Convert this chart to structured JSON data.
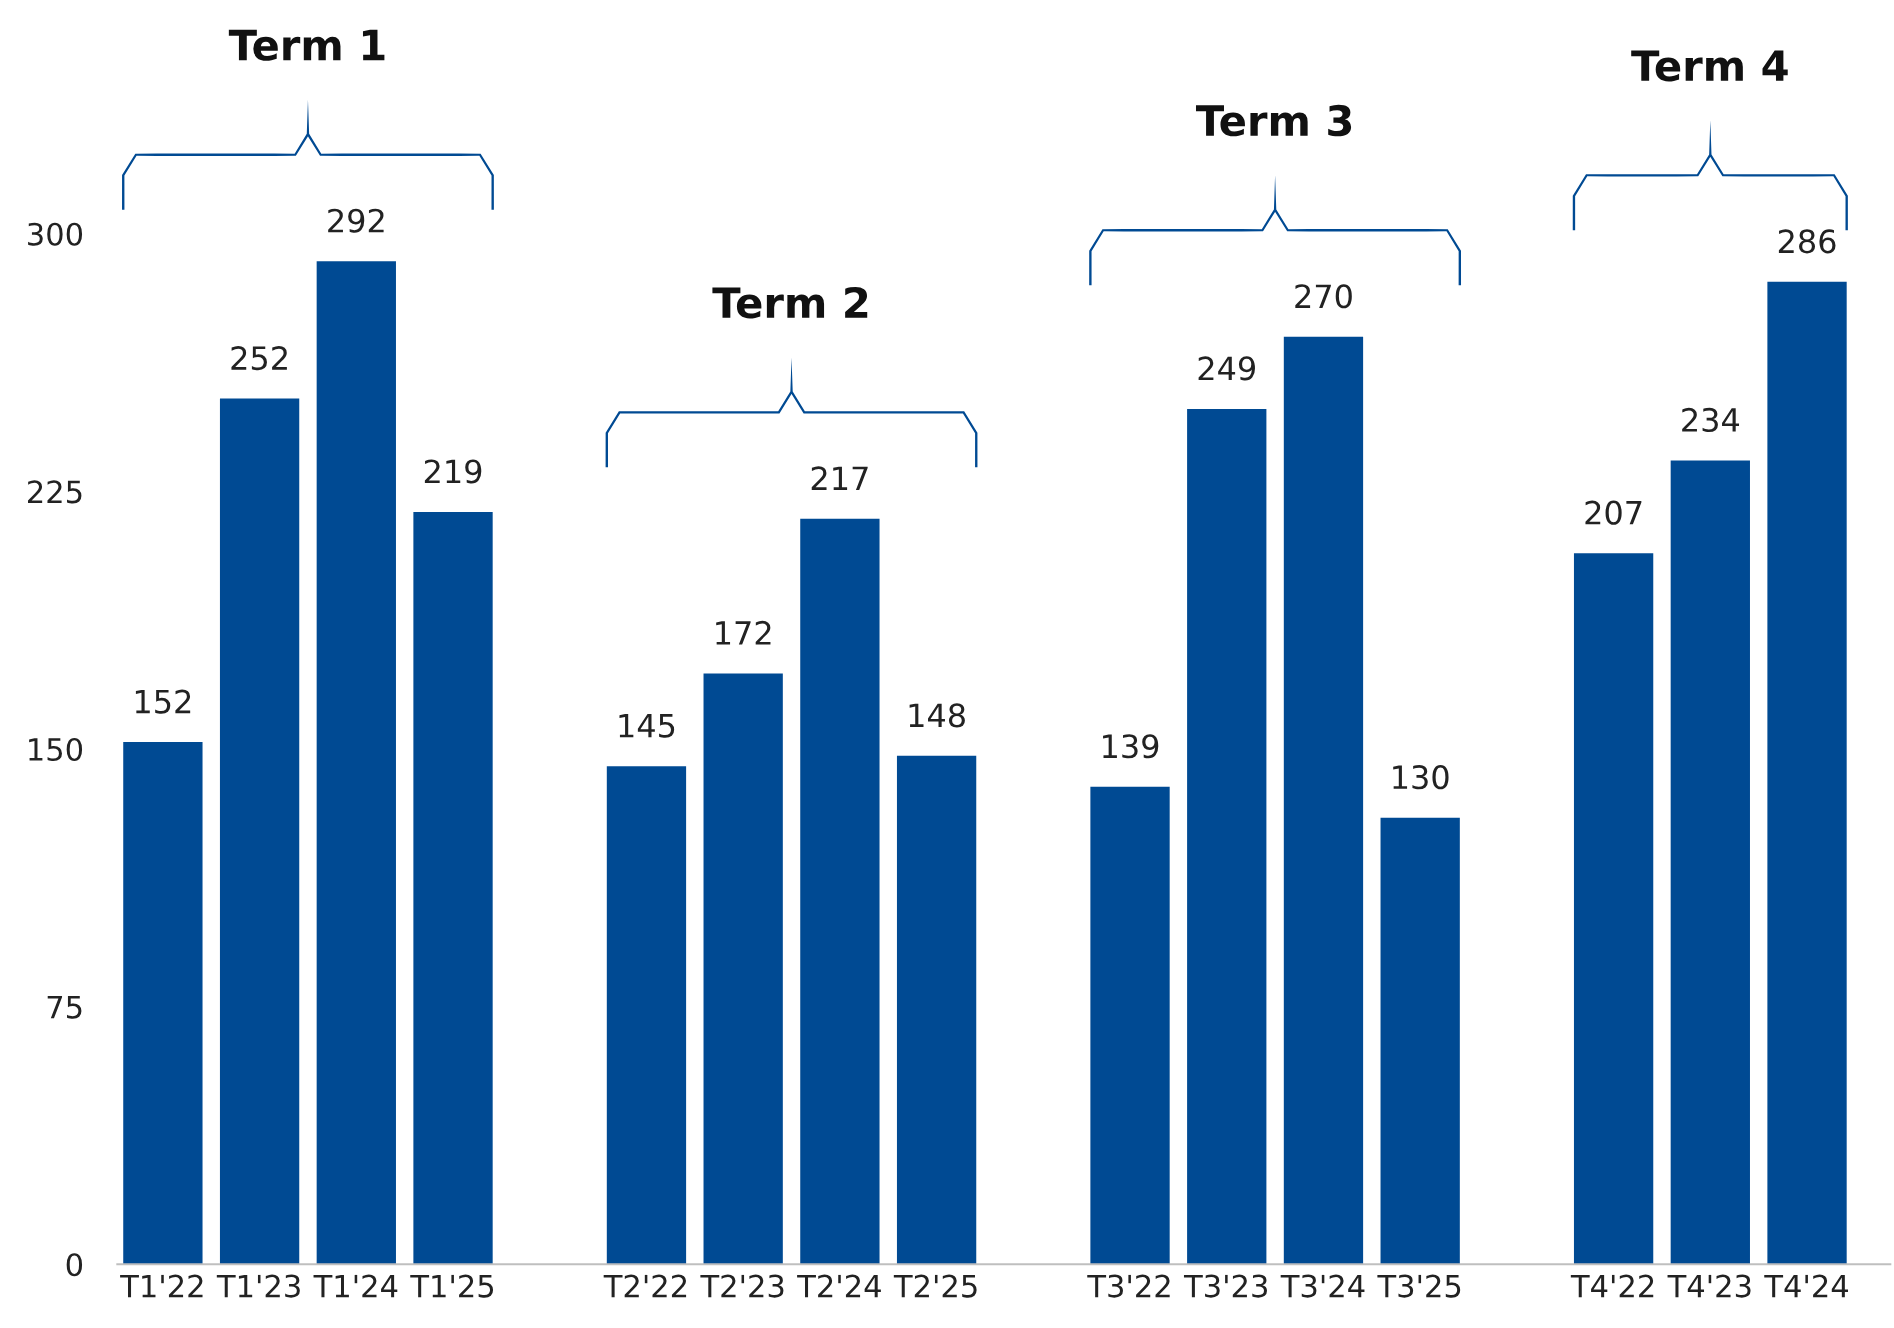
{
  "chart_data": {
    "type": "bar",
    "categories": [
      "T1'22",
      "T1'23",
      "T1'24",
      "T1'25",
      null,
      "T2'22",
      "T2'23",
      "T2'24",
      "T2'25",
      null,
      "T3'22",
      "T3'23",
      "T3'24",
      "T3'25",
      null,
      "T4'22",
      "T4'23",
      "T4'24"
    ],
    "values": [
      152,
      252,
      292,
      219,
      null,
      145,
      172,
      217,
      148,
      null,
      139,
      249,
      270,
      130,
      null,
      207,
      234,
      286
    ],
    "color": "#004a93",
    "ylim": [
      0,
      300
    ],
    "yticks": [
      0,
      75,
      150,
      225,
      300
    ],
    "data_labels": true,
    "grid": false,
    "legend": false,
    "annotations": [
      "Term 1",
      "Term 2",
      "Term 3",
      "Term 4"
    ]
  }
}
